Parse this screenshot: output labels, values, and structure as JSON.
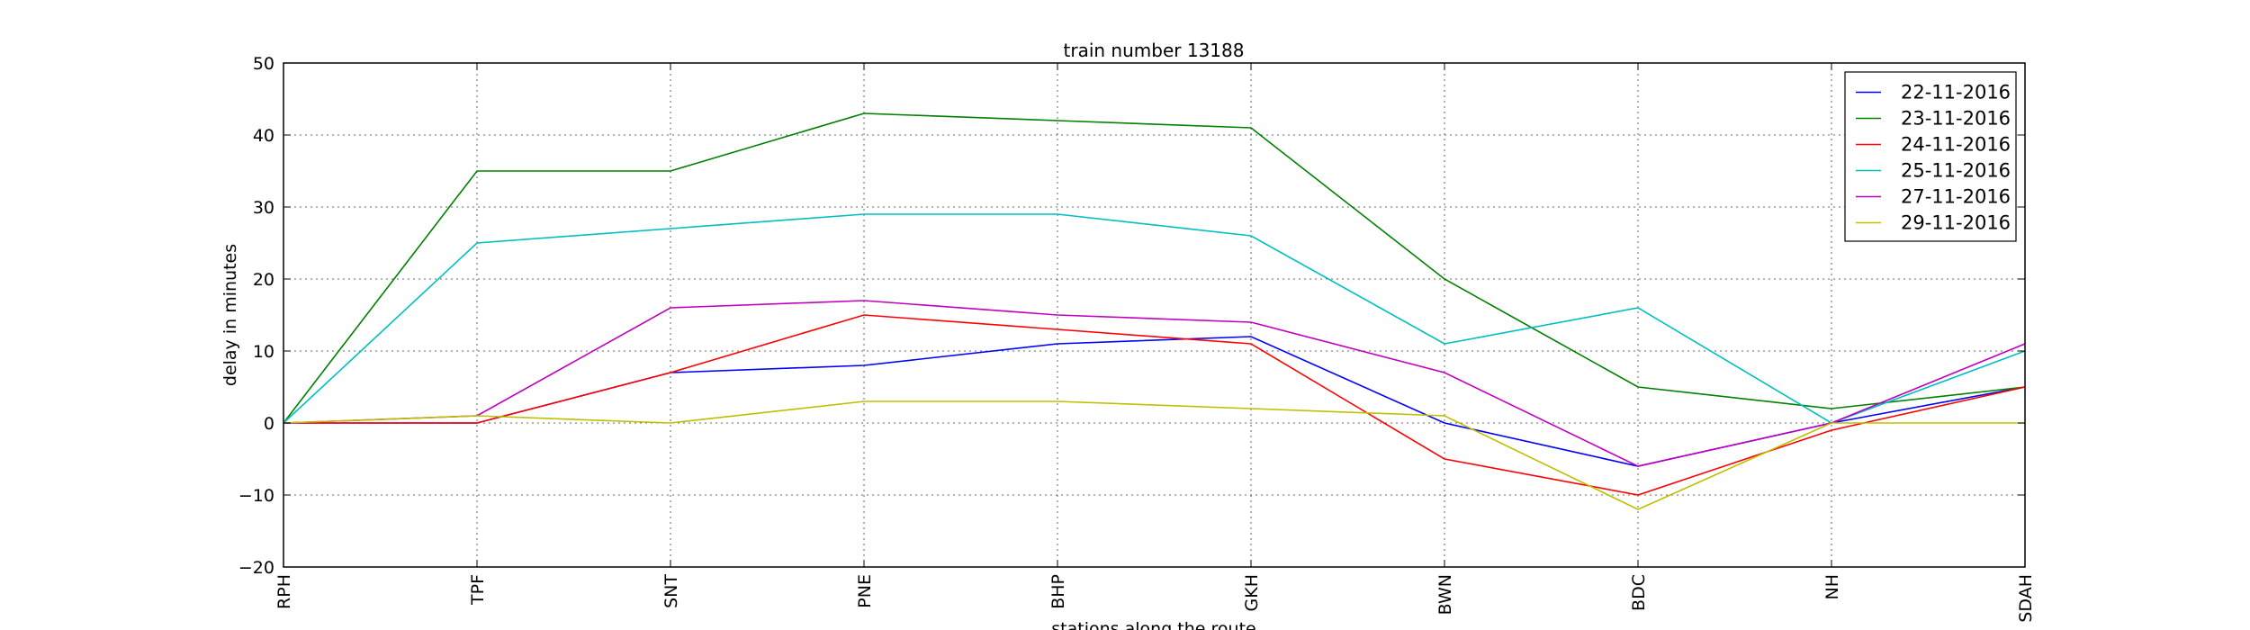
{
  "chart_data": {
    "type": "line",
    "title": "train number 13188",
    "xlabel": "stations along the route",
    "ylabel": "delay in minutes",
    "categories": [
      "RPH",
      "TPF",
      "SNT",
      "PNE",
      "BHP",
      "GKH",
      "BWN",
      "BDC",
      "NH",
      "SDAH"
    ],
    "ylim": [
      -20,
      50
    ],
    "yticks": [
      -20,
      -10,
      0,
      10,
      20,
      30,
      40,
      50
    ],
    "grid": true,
    "legend_position": "top-right",
    "series": [
      {
        "name": "22-11-2016",
        "color": "#0000ff",
        "values": [
          0,
          0,
          7,
          8,
          11,
          12,
          0,
          -6,
          0,
          5
        ]
      },
      {
        "name": "23-11-2016",
        "color": "#008000",
        "values": [
          0,
          35,
          35,
          43,
          42,
          41,
          20,
          5,
          2,
          5
        ]
      },
      {
        "name": "24-11-2016",
        "color": "#ff0000",
        "values": [
          0,
          0,
          7,
          15,
          13,
          11,
          -5,
          -10,
          -1,
          5
        ]
      },
      {
        "name": "25-11-2016",
        "color": "#00bfbf",
        "values": [
          0,
          25,
          27,
          29,
          29,
          26,
          11,
          16,
          0,
          10
        ]
      },
      {
        "name": "27-11-2016",
        "color": "#bf00bf",
        "values": [
          0,
          1,
          16,
          17,
          15,
          14,
          7,
          -6,
          0,
          11
        ]
      },
      {
        "name": "29-11-2016",
        "color": "#bfbf00",
        "values": [
          0,
          1,
          0,
          3,
          3,
          2,
          1,
          -12,
          0,
          0
        ]
      }
    ]
  }
}
